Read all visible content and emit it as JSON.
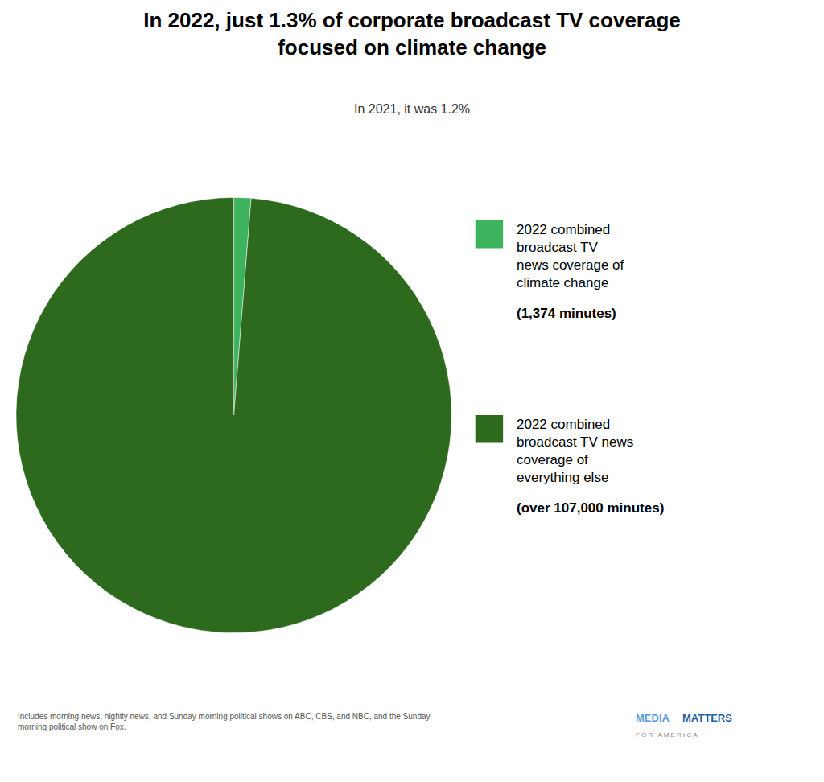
{
  "chart_data": {
    "type": "pie",
    "title": "In 2022, just 1.3% of corporate broadcast TV coverage\nfocused on climate change",
    "subtitle": "In 2021, it was 1.2%",
    "categories": [
      "2022 combined\nbroadcast TV\nnews coverage of\nclimate change",
      "2022 combined\nbroadcast TV news\ncoverage of\neverything else"
    ],
    "values": [
      1374,
      107000
    ],
    "colors": [
      "#3db35e",
      "#2d6a1e"
    ],
    "legend": "right",
    "data_labels": false,
    "annotations": [
      "(1,374 minutes)",
      "(over 107,000 minutes)",
      "Includes morning news, nightly news, and Sunday morning political shows on ABC, CBS, and NBC, and the Sunday\nmorning political show on Fox.",
      "MEDIA",
      "MATTERS",
      "F O R   A M E R I C A"
    ]
  }
}
